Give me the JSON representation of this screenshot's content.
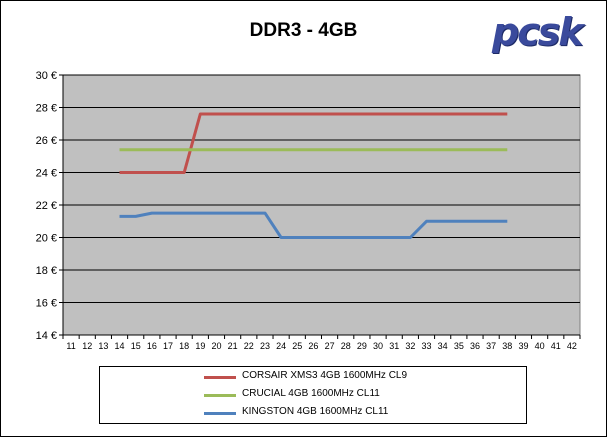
{
  "logo": {
    "text": "pcsk"
  },
  "chart_data": {
    "type": "line",
    "title": "DDR3 - 4GB",
    "xlabel": "",
    "ylabel": "",
    "x": [
      11,
      12,
      13,
      14,
      15,
      16,
      17,
      18,
      19,
      20,
      21,
      22,
      23,
      24,
      25,
      26,
      27,
      28,
      29,
      30,
      31,
      32,
      33,
      34,
      35,
      36,
      37,
      38,
      39,
      40,
      41,
      42
    ],
    "ylim": [
      14,
      30
    ],
    "ytick_values": [
      14,
      16,
      18,
      20,
      22,
      24,
      26,
      28,
      30
    ],
    "ytick_labels": [
      "14 €",
      "16 €",
      "18 €",
      "20 €",
      "22 €",
      "24 €",
      "26 €",
      "28 €",
      "30 €"
    ],
    "grid": true,
    "legend_position": "bottom",
    "series": [
      {
        "name": "CORSAIR XMS3 4GB 1600MHz CL9",
        "color": "#c0504d",
        "points": [
          [
            14,
            24
          ],
          [
            15,
            24
          ],
          [
            16,
            24
          ],
          [
            17,
            24
          ],
          [
            18,
            24
          ],
          [
            19,
            27.6
          ],
          [
            20,
            27.6
          ],
          [
            21,
            27.6
          ],
          [
            22,
            27.6
          ],
          [
            23,
            27.6
          ],
          [
            24,
            27.6
          ],
          [
            25,
            27.6
          ],
          [
            26,
            27.6
          ],
          [
            27,
            27.6
          ],
          [
            28,
            27.6
          ],
          [
            29,
            27.6
          ],
          [
            30,
            27.6
          ],
          [
            31,
            27.6
          ],
          [
            32,
            27.6
          ],
          [
            33,
            27.6
          ],
          [
            34,
            27.6
          ],
          [
            35,
            27.6
          ],
          [
            36,
            27.6
          ],
          [
            37,
            27.6
          ],
          [
            38,
            27.6
          ]
        ]
      },
      {
        "name": "CRUCIAL 4GB 1600MHz CL11",
        "color": "#9bbb59",
        "points": [
          [
            14,
            25.4
          ],
          [
            15,
            25.4
          ],
          [
            16,
            25.4
          ],
          [
            17,
            25.4
          ],
          [
            18,
            25.4
          ],
          [
            19,
            25.4
          ],
          [
            20,
            25.4
          ],
          [
            21,
            25.4
          ],
          [
            22,
            25.4
          ],
          [
            23,
            25.4
          ],
          [
            24,
            25.4
          ],
          [
            25,
            25.4
          ],
          [
            26,
            25.4
          ],
          [
            27,
            25.4
          ],
          [
            28,
            25.4
          ],
          [
            29,
            25.4
          ],
          [
            30,
            25.4
          ],
          [
            31,
            25.4
          ],
          [
            32,
            25.4
          ],
          [
            33,
            25.4
          ],
          [
            34,
            25.4
          ],
          [
            35,
            25.4
          ],
          [
            36,
            25.4
          ],
          [
            37,
            25.4
          ],
          [
            38,
            25.4
          ]
        ]
      },
      {
        "name": "KINGSTON 4GB 1600MHz CL11",
        "color": "#4f81bd",
        "points": [
          [
            14,
            21.3
          ],
          [
            15,
            21.3
          ],
          [
            16,
            21.5
          ],
          [
            17,
            21.5
          ],
          [
            18,
            21.5
          ],
          [
            19,
            21.5
          ],
          [
            20,
            21.5
          ],
          [
            21,
            21.5
          ],
          [
            22,
            21.5
          ],
          [
            23,
            21.5
          ],
          [
            24,
            20
          ],
          [
            25,
            20
          ],
          [
            26,
            20
          ],
          [
            27,
            20
          ],
          [
            28,
            20
          ],
          [
            29,
            20
          ],
          [
            30,
            20
          ],
          [
            31,
            20
          ],
          [
            32,
            20
          ],
          [
            33,
            21
          ],
          [
            34,
            21
          ],
          [
            35,
            21
          ],
          [
            36,
            21
          ],
          [
            37,
            21
          ],
          [
            38,
            21
          ]
        ]
      }
    ]
  }
}
